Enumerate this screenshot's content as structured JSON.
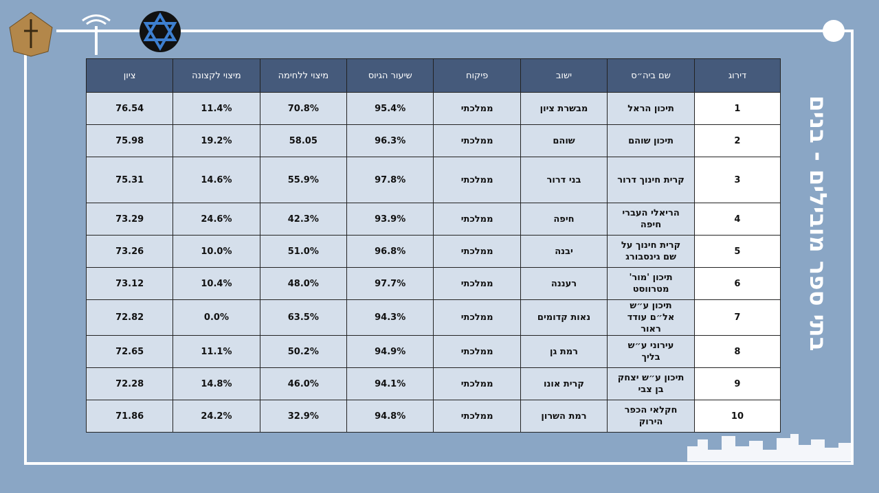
{
  "title": "בתי ספר מובילים - בנים",
  "table": {
    "headers": [
      "דירוג",
      "שם ביה״ס",
      "ישוב",
      "פיקוח",
      "שיעור הגיוס",
      "מיצוי ללחימה",
      "מיצוי לקצונה",
      "ציון"
    ],
    "rows": [
      [
        "1",
        "תיכון הראל",
        "מבשרת ציון",
        "ממלכתי",
        "95.4%",
        "70.8%",
        "11.4%",
        "76.54"
      ],
      [
        "2",
        "תיכון שוהם",
        "שוהם",
        "ממלכתי",
        "96.3%",
        "58.05",
        "19.2%",
        "75.98"
      ],
      [
        "3",
        "קרית חינוך דרור",
        "בני דרור",
        "ממלכתי",
        "97.8%",
        "55.9%",
        "14.6%",
        "75.31"
      ],
      [
        "4",
        "הריאלי העברי חיפה",
        "חיפה",
        "ממלכתי",
        "93.9%",
        "42.3%",
        "24.6%",
        "73.29"
      ],
      [
        "5",
        "קרית חינוך על שם גינסבורג",
        "יבנה",
        "ממלכתי",
        "96.8%",
        "51.0%",
        "10.0%",
        "73.26"
      ],
      [
        "6",
        "תיכון 'מור' מטרווסט",
        "רעננה",
        "ממלכתי",
        "97.7%",
        "48.0%",
        "10.4%",
        "73.12"
      ],
      [
        "7",
        "תיכון ע״ש אל״ם עודד ראור",
        "נאות קדומים",
        "ממלכתי",
        "94.3%",
        "63.5%",
        "0.0%",
        "72.82"
      ],
      [
        "8",
        "עירוני ע״ש בליך",
        "רמת גן",
        "ממלכתי",
        "94.9%",
        "50.2%",
        "11.1%",
        "72.65"
      ],
      [
        "9",
        "תיכון ע״ש יצחק בן צבי",
        "קרית אונו",
        "ממלכתי",
        "94.1%",
        "46.0%",
        "14.8%",
        "72.28"
      ],
      [
        "10",
        "חקלאי הכפר הירוק",
        "רמת השרון",
        "ממלכתי",
        "94.8%",
        "32.9%",
        "24.2%",
        "71.86"
      ]
    ]
  }
}
